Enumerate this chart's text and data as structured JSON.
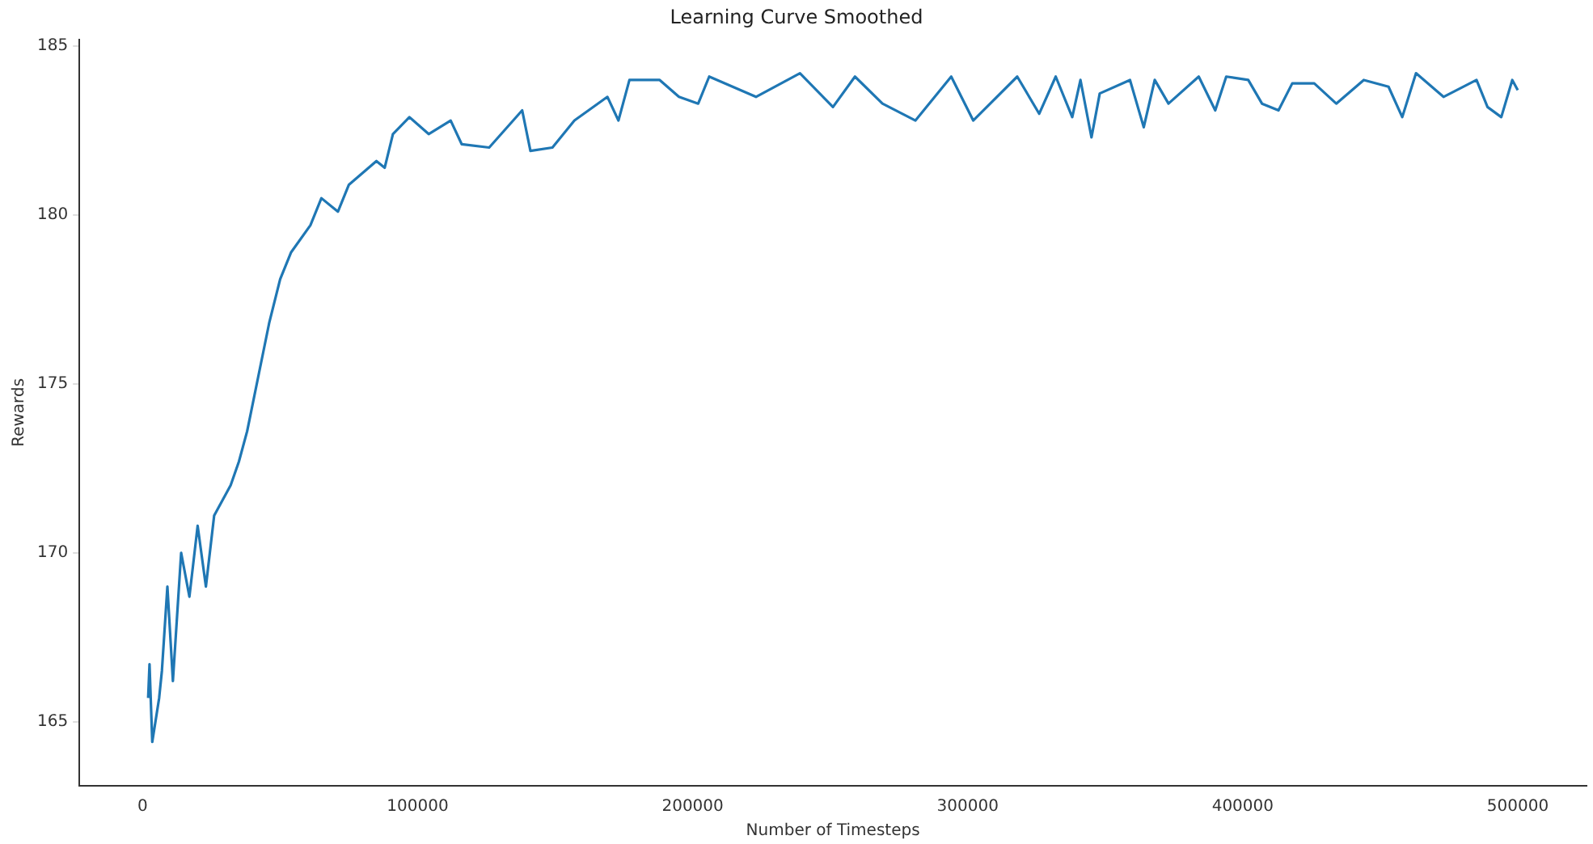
{
  "chart_data": {
    "type": "line",
    "title": "Learning Curve Smoothed",
    "xlabel": "Number of Timesteps",
    "ylabel": "Rewards",
    "xlim": [
      -23000,
      525000
    ],
    "ylim": [
      163.1,
      185.2
    ],
    "xticks": [
      0,
      100000,
      200000,
      300000,
      400000,
      500000
    ],
    "yticks": [
      165,
      170,
      175,
      180,
      185
    ],
    "grid": false,
    "legend": false,
    "marker": "none",
    "line_style": "solid",
    "series": [
      {
        "color": "#1f77b4",
        "x": [
          2000,
          2500,
          3500,
          6000,
          7000,
          9000,
          11000,
          14000,
          17000,
          20000,
          23000,
          26000,
          32000,
          35000,
          38000,
          42000,
          46000,
          50000,
          54000,
          61000,
          65000,
          71000,
          75000,
          85000,
          88000,
          91000,
          97000,
          104000,
          112000,
          116000,
          126000,
          138000,
          141000,
          149000,
          157000,
          169000,
          173000,
          177000,
          188000,
          195000,
          202000,
          206000,
          223000,
          239000,
          251000,
          259000,
          269000,
          281000,
          294000,
          302000,
          318000,
          326000,
          332000,
          338000,
          341000,
          345000,
          348000,
          359000,
          364000,
          368000,
          373000,
          384000,
          390000,
          394000,
          402000,
          407000,
          413000,
          418000,
          426000,
          434000,
          444000,
          453000,
          458000,
          463000,
          473000,
          485000,
          489000,
          494000,
          498000,
          500000
        ],
        "values": [
          165.7,
          166.7,
          164.4,
          165.7,
          166.5,
          169.0,
          166.2,
          170.0,
          168.7,
          170.8,
          169.0,
          171.1,
          172.0,
          172.7,
          173.6,
          175.2,
          176.8,
          178.1,
          178.9,
          179.7,
          180.5,
          180.1,
          180.9,
          181.6,
          181.4,
          182.4,
          182.9,
          182.4,
          182.8,
          182.1,
          182.0,
          183.1,
          181.9,
          182.0,
          182.8,
          183.5,
          182.8,
          184.0,
          184.0,
          183.5,
          183.3,
          184.1,
          183.5,
          184.2,
          183.2,
          184.1,
          183.3,
          182.8,
          184.1,
          182.8,
          184.1,
          183.0,
          184.1,
          182.9,
          184.0,
          182.3,
          183.6,
          184.0,
          182.6,
          184.0,
          183.3,
          184.1,
          183.1,
          184.1,
          184.0,
          183.3,
          183.1,
          183.9,
          183.9,
          183.3,
          184.0,
          183.8,
          182.9,
          184.2,
          183.5,
          184.0,
          183.2,
          182.9,
          184.0,
          183.7
        ]
      }
    ]
  }
}
